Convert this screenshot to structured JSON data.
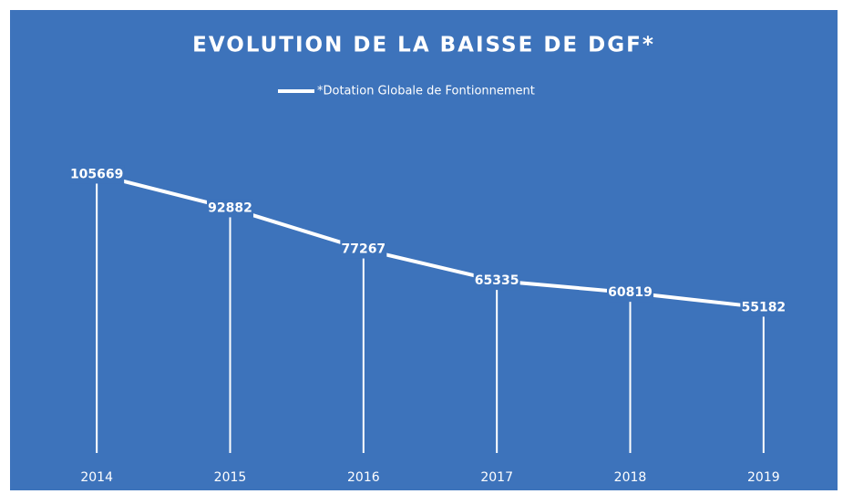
{
  "chart_data": {
    "type": "line",
    "title": "EVOLUTION DE LA BAISSE DE DGF*",
    "categories": [
      "2014",
      "2015",
      "2016",
      "2017",
      "2018",
      "2019"
    ],
    "series": [
      {
        "name": "*Dotation Globale de Fontionnement",
        "color": "#ffffff",
        "values": [
          105669,
          92882,
          77267,
          65335,
          60819,
          55182
        ]
      }
    ],
    "ylim": [
      0,
      120000
    ],
    "drop_lines": true,
    "legend": "top",
    "background": "#3d73bb"
  }
}
